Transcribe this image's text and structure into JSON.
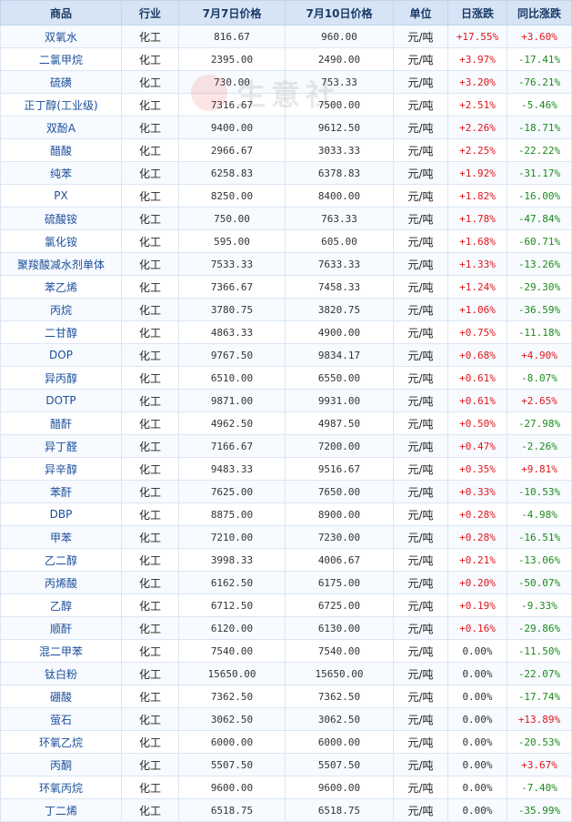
{
  "header": [
    "商品",
    "行业",
    "7月7日价格",
    "7月10日价格",
    "单位",
    "日涨跌",
    "同比涨跌"
  ],
  "watermark": "生意社",
  "rows": [
    {
      "name": "双氧水",
      "industry": "化工",
      "p1": "816.67",
      "p2": "960.00",
      "unit": "元/吨",
      "day": "+17.55%",
      "yoy": "+3.60%",
      "day_dir": "up",
      "yoy_dir": "up"
    },
    {
      "name": "二氯甲烷",
      "industry": "化工",
      "p1": "2395.00",
      "p2": "2490.00",
      "unit": "元/吨",
      "day": "+3.97%",
      "yoy": "-17.41%",
      "day_dir": "up",
      "yoy_dir": "down"
    },
    {
      "name": "硫磺",
      "industry": "化工",
      "p1": "730.00",
      "p2": "753.33",
      "unit": "元/吨",
      "day": "+3.20%",
      "yoy": "-76.21%",
      "day_dir": "up",
      "yoy_dir": "down"
    },
    {
      "name": "正丁醇(工业级)",
      "industry": "化工",
      "p1": "7316.67",
      "p2": "7500.00",
      "unit": "元/吨",
      "day": "+2.51%",
      "yoy": "-5.46%",
      "day_dir": "up",
      "yoy_dir": "down"
    },
    {
      "name": "双酚A",
      "industry": "化工",
      "p1": "9400.00",
      "p2": "9612.50",
      "unit": "元/吨",
      "day": "+2.26%",
      "yoy": "-18.71%",
      "day_dir": "up",
      "yoy_dir": "down"
    },
    {
      "name": "醋酸",
      "industry": "化工",
      "p1": "2966.67",
      "p2": "3033.33",
      "unit": "元/吨",
      "day": "+2.25%",
      "yoy": "-22.22%",
      "day_dir": "up",
      "yoy_dir": "down"
    },
    {
      "name": "纯苯",
      "industry": "化工",
      "p1": "6258.83",
      "p2": "6378.83",
      "unit": "元/吨",
      "day": "+1.92%",
      "yoy": "-31.17%",
      "day_dir": "up",
      "yoy_dir": "down"
    },
    {
      "name": "PX",
      "industry": "化工",
      "p1": "8250.00",
      "p2": "8400.00",
      "unit": "元/吨",
      "day": "+1.82%",
      "yoy": "-16.00%",
      "day_dir": "up",
      "yoy_dir": "down"
    },
    {
      "name": "硫酸铵",
      "industry": "化工",
      "p1": "750.00",
      "p2": "763.33",
      "unit": "元/吨",
      "day": "+1.78%",
      "yoy": "-47.84%",
      "day_dir": "up",
      "yoy_dir": "down"
    },
    {
      "name": "氯化铵",
      "industry": "化工",
      "p1": "595.00",
      "p2": "605.00",
      "unit": "元/吨",
      "day": "+1.68%",
      "yoy": "-60.71%",
      "day_dir": "up",
      "yoy_dir": "down"
    },
    {
      "name": "聚羧酸减水剂单体",
      "industry": "化工",
      "p1": "7533.33",
      "p2": "7633.33",
      "unit": "元/吨",
      "day": "+1.33%",
      "yoy": "-13.26%",
      "day_dir": "up",
      "yoy_dir": "down"
    },
    {
      "name": "苯乙烯",
      "industry": "化工",
      "p1": "7366.67",
      "p2": "7458.33",
      "unit": "元/吨",
      "day": "+1.24%",
      "yoy": "-29.30%",
      "day_dir": "up",
      "yoy_dir": "down"
    },
    {
      "name": "丙烷",
      "industry": "化工",
      "p1": "3780.75",
      "p2": "3820.75",
      "unit": "元/吨",
      "day": "+1.06%",
      "yoy": "-36.59%",
      "day_dir": "up",
      "yoy_dir": "down"
    },
    {
      "name": "二甘醇",
      "industry": "化工",
      "p1": "4863.33",
      "p2": "4900.00",
      "unit": "元/吨",
      "day": "+0.75%",
      "yoy": "-11.18%",
      "day_dir": "up",
      "yoy_dir": "down"
    },
    {
      "name": "DOP",
      "industry": "化工",
      "p1": "9767.50",
      "p2": "9834.17",
      "unit": "元/吨",
      "day": "+0.68%",
      "yoy": "+4.90%",
      "day_dir": "up",
      "yoy_dir": "up"
    },
    {
      "name": "异丙醇",
      "industry": "化工",
      "p1": "6510.00",
      "p2": "6550.00",
      "unit": "元/吨",
      "day": "+0.61%",
      "yoy": "-8.07%",
      "day_dir": "up",
      "yoy_dir": "down"
    },
    {
      "name": "DOTP",
      "industry": "化工",
      "p1": "9871.00",
      "p2": "9931.00",
      "unit": "元/吨",
      "day": "+0.61%",
      "yoy": "+2.65%",
      "day_dir": "up",
      "yoy_dir": "up"
    },
    {
      "name": "醋酐",
      "industry": "化工",
      "p1": "4962.50",
      "p2": "4987.50",
      "unit": "元/吨",
      "day": "+0.50%",
      "yoy": "-27.98%",
      "day_dir": "up",
      "yoy_dir": "down"
    },
    {
      "name": "异丁醛",
      "industry": "化工",
      "p1": "7166.67",
      "p2": "7200.00",
      "unit": "元/吨",
      "day": "+0.47%",
      "yoy": "-2.26%",
      "day_dir": "up",
      "yoy_dir": "down"
    },
    {
      "name": "异辛醇",
      "industry": "化工",
      "p1": "9483.33",
      "p2": "9516.67",
      "unit": "元/吨",
      "day": "+0.35%",
      "yoy": "+9.81%",
      "day_dir": "up",
      "yoy_dir": "up"
    },
    {
      "name": "苯酐",
      "industry": "化工",
      "p1": "7625.00",
      "p2": "7650.00",
      "unit": "元/吨",
      "day": "+0.33%",
      "yoy": "-10.53%",
      "day_dir": "up",
      "yoy_dir": "down"
    },
    {
      "name": "DBP",
      "industry": "化工",
      "p1": "8875.00",
      "p2": "8900.00",
      "unit": "元/吨",
      "day": "+0.28%",
      "yoy": "-4.98%",
      "day_dir": "up",
      "yoy_dir": "down"
    },
    {
      "name": "甲苯",
      "industry": "化工",
      "p1": "7210.00",
      "p2": "7230.00",
      "unit": "元/吨",
      "day": "+0.28%",
      "yoy": "-16.51%",
      "day_dir": "up",
      "yoy_dir": "down"
    },
    {
      "name": "乙二醇",
      "industry": "化工",
      "p1": "3998.33",
      "p2": "4006.67",
      "unit": "元/吨",
      "day": "+0.21%",
      "yoy": "-13.06%",
      "day_dir": "up",
      "yoy_dir": "down"
    },
    {
      "name": "丙烯酸",
      "industry": "化工",
      "p1": "6162.50",
      "p2": "6175.00",
      "unit": "元/吨",
      "day": "+0.20%",
      "yoy": "-50.07%",
      "day_dir": "up",
      "yoy_dir": "down"
    },
    {
      "name": "乙醇",
      "industry": "化工",
      "p1": "6712.50",
      "p2": "6725.00",
      "unit": "元/吨",
      "day": "+0.19%",
      "yoy": "-9.33%",
      "day_dir": "up",
      "yoy_dir": "down"
    },
    {
      "name": "顺酐",
      "industry": "化工",
      "p1": "6120.00",
      "p2": "6130.00",
      "unit": "元/吨",
      "day": "+0.16%",
      "yoy": "-29.86%",
      "day_dir": "up",
      "yoy_dir": "down"
    },
    {
      "name": "混二甲苯",
      "industry": "化工",
      "p1": "7540.00",
      "p2": "7540.00",
      "unit": "元/吨",
      "day": "0.00%",
      "yoy": "-11.50%",
      "day_dir": "flat",
      "yoy_dir": "down"
    },
    {
      "name": "钛白粉",
      "industry": "化工",
      "p1": "15650.00",
      "p2": "15650.00",
      "unit": "元/吨",
      "day": "0.00%",
      "yoy": "-22.07%",
      "day_dir": "flat",
      "yoy_dir": "down"
    },
    {
      "name": "硼酸",
      "industry": "化工",
      "p1": "7362.50",
      "p2": "7362.50",
      "unit": "元/吨",
      "day": "0.00%",
      "yoy": "-17.74%",
      "day_dir": "flat",
      "yoy_dir": "down"
    },
    {
      "name": "萤石",
      "industry": "化工",
      "p1": "3062.50",
      "p2": "3062.50",
      "unit": "元/吨",
      "day": "0.00%",
      "yoy": "+13.89%",
      "day_dir": "flat",
      "yoy_dir": "up"
    },
    {
      "name": "环氧乙烷",
      "industry": "化工",
      "p1": "6000.00",
      "p2": "6000.00",
      "unit": "元/吨",
      "day": "0.00%",
      "yoy": "-20.53%",
      "day_dir": "flat",
      "yoy_dir": "down"
    },
    {
      "name": "丙酮",
      "industry": "化工",
      "p1": "5507.50",
      "p2": "5507.50",
      "unit": "元/吨",
      "day": "0.00%",
      "yoy": "+3.67%",
      "day_dir": "flat",
      "yoy_dir": "up"
    },
    {
      "name": "环氧丙烷",
      "industry": "化工",
      "p1": "9600.00",
      "p2": "9600.00",
      "unit": "元/吨",
      "day": "0.00%",
      "yoy": "-7.40%",
      "day_dir": "flat",
      "yoy_dir": "down"
    },
    {
      "name": "丁二烯",
      "industry": "化工",
      "p1": "6518.75",
      "p2": "6518.75",
      "unit": "元/吨",
      "day": "0.00%",
      "yoy": "-35.99%",
      "day_dir": "flat",
      "yoy_dir": "down"
    }
  ]
}
